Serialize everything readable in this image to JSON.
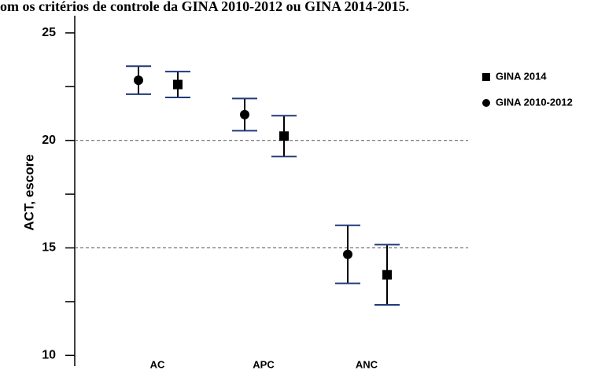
{
  "chart_data": {
    "type": "errorbar",
    "title": "om os critérios de controle da GINA 2010-2012 ou GINA 2014-2015.",
    "y_label": "ACT, escore",
    "categories": [
      "AC",
      "APC",
      "ANC"
    ],
    "series": [
      {
        "name": "GINA 2014",
        "marker": "square",
        "color": "#000000",
        "values": [
          22.6,
          20.2,
          13.75
        ],
        "errors": [
          0.6,
          0.95,
          1.4
        ]
      },
      {
        "name": "GINA 2010-2012",
        "marker": "circle",
        "color": "#000000",
        "values": [
          22.8,
          21.2,
          14.7
        ],
        "errors": [
          0.65,
          0.75,
          1.35
        ]
      }
    ],
    "error_cap_color": "#1f3a7a",
    "ylim": [
      9.5,
      25.8
    ],
    "yticks": [
      10,
      15,
      20,
      25
    ],
    "minor_yticks": [
      12.5,
      17.5,
      22.5
    ],
    "dashed_lines": [
      15,
      20
    ],
    "legend": "right"
  }
}
